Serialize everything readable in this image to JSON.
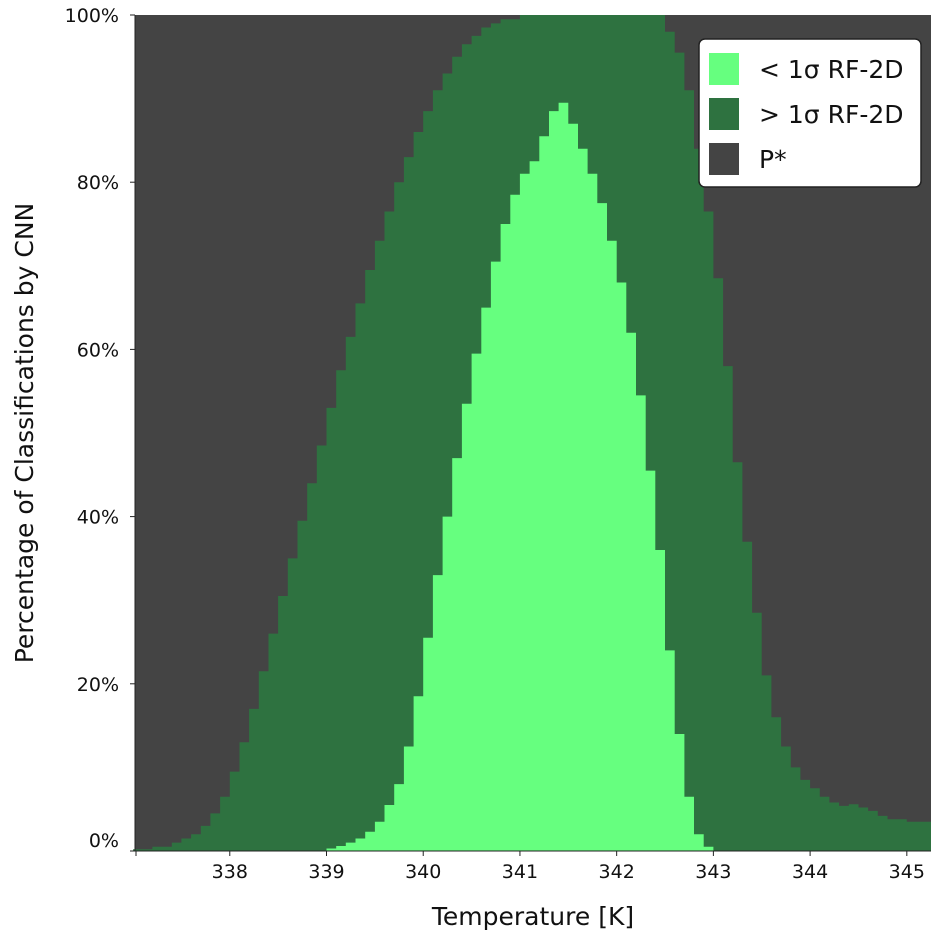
{
  "chart_data": {
    "type": "area",
    "subtype": "stacked-step",
    "xlabel": "Temperature [K]",
    "ylabel": "Percentage of Classifications by CNN",
    "xlim": [
      337.02,
      345.25
    ],
    "ylim": [
      0,
      100
    ],
    "x_ticks": [
      338,
      339,
      340,
      341,
      342,
      343,
      344,
      345
    ],
    "x_tick_labels": [
      "338",
      "339",
      "340",
      "341",
      "342",
      "343",
      "344",
      "345"
    ],
    "y_ticks": [
      0,
      20,
      40,
      60,
      80,
      100
    ],
    "y_tick_labels": [
      "0%",
      "20%",
      "40%",
      "60%",
      "80%",
      "100%"
    ],
    "grid": false,
    "legend_position": "top-right",
    "series": [
      {
        "name": "< 1σ RF-2D",
        "color": "#66ff7f",
        "points": [
          [
            337.0,
            0
          ],
          [
            338.0,
            0
          ],
          [
            338.8,
            0
          ],
          [
            339.0,
            0.3
          ],
          [
            339.1,
            0.6
          ],
          [
            339.2,
            1.0
          ],
          [
            339.3,
            1.5
          ],
          [
            339.4,
            2.3
          ],
          [
            339.5,
            3.5
          ],
          [
            339.6,
            5.5
          ],
          [
            339.7,
            8.0
          ],
          [
            339.8,
            12.5
          ],
          [
            339.9,
            18.5
          ],
          [
            340.0,
            25.5
          ],
          [
            340.1,
            33.0
          ],
          [
            340.2,
            40.0
          ],
          [
            340.3,
            47.0
          ],
          [
            340.4,
            53.5
          ],
          [
            340.5,
            59.5
          ],
          [
            340.6,
            65.0
          ],
          [
            340.7,
            70.5
          ],
          [
            340.8,
            75.0
          ],
          [
            340.9,
            78.5
          ],
          [
            341.0,
            81.0
          ],
          [
            341.1,
            82.5
          ],
          [
            341.2,
            85.5
          ],
          [
            341.3,
            88.5
          ],
          [
            341.4,
            89.5
          ],
          [
            341.5,
            87.0
          ],
          [
            341.6,
            84.0
          ],
          [
            341.7,
            81.0
          ],
          [
            341.8,
            77.5
          ],
          [
            341.9,
            73.0
          ],
          [
            342.0,
            68.0
          ],
          [
            342.1,
            62.0
          ],
          [
            342.2,
            54.5
          ],
          [
            342.3,
            45.5
          ],
          [
            342.4,
            36.0
          ],
          [
            342.5,
            24.0
          ],
          [
            342.6,
            14.0
          ],
          [
            342.7,
            6.5
          ],
          [
            342.8,
            2.0
          ],
          [
            342.9,
            0.5
          ],
          [
            343.0,
            0
          ],
          [
            345.25,
            0
          ]
        ]
      },
      {
        "name": "> 1σ RF-2D",
        "color": "#2e7240",
        "points": [
          [
            337.0,
            0.2
          ],
          [
            337.2,
            0.5
          ],
          [
            337.4,
            1.0
          ],
          [
            337.5,
            1.5
          ],
          [
            337.6,
            2.0
          ],
          [
            337.7,
            3.0
          ],
          [
            337.8,
            4.5
          ],
          [
            337.9,
            6.5
          ],
          [
            338.0,
            9.5
          ],
          [
            338.1,
            13.0
          ],
          [
            338.2,
            17.0
          ],
          [
            338.3,
            21.5
          ],
          [
            338.4,
            26.0
          ],
          [
            338.5,
            30.5
          ],
          [
            338.6,
            35.0
          ],
          [
            338.7,
            39.5
          ],
          [
            338.8,
            44.0
          ],
          [
            338.9,
            48.5
          ],
          [
            339.0,
            53.0
          ],
          [
            339.1,
            57.5
          ],
          [
            339.2,
            61.5
          ],
          [
            339.3,
            65.5
          ],
          [
            339.4,
            69.5
          ],
          [
            339.5,
            73.0
          ],
          [
            339.6,
            76.5
          ],
          [
            339.7,
            80.0
          ],
          [
            339.8,
            83.0
          ],
          [
            339.9,
            86.0
          ],
          [
            340.0,
            88.5
          ],
          [
            340.1,
            91.0
          ],
          [
            340.2,
            93.0
          ],
          [
            340.3,
            95.0
          ],
          [
            340.4,
            96.5
          ],
          [
            340.5,
            97.5
          ],
          [
            340.6,
            98.5
          ],
          [
            340.7,
            99.0
          ],
          [
            340.8,
            99.5
          ],
          [
            341.0,
            100
          ],
          [
            342.4,
            100
          ],
          [
            342.5,
            98.0
          ],
          [
            342.6,
            95.5
          ],
          [
            342.7,
            91.0
          ],
          [
            342.8,
            84.0
          ],
          [
            342.9,
            76.5
          ],
          [
            343.0,
            68.5
          ],
          [
            343.1,
            58.0
          ],
          [
            343.2,
            46.5
          ],
          [
            343.3,
            37.0
          ],
          [
            343.4,
            28.5
          ],
          [
            343.5,
            21.0
          ],
          [
            343.6,
            16.0
          ],
          [
            343.7,
            12.5
          ],
          [
            343.8,
            10.0
          ],
          [
            343.9,
            8.5
          ],
          [
            344.0,
            7.5
          ],
          [
            344.1,
            6.5
          ],
          [
            344.2,
            5.8
          ],
          [
            344.3,
            5.4
          ],
          [
            344.4,
            5.6
          ],
          [
            344.5,
            5.2
          ],
          [
            344.6,
            4.8
          ],
          [
            344.7,
            4.2
          ],
          [
            344.8,
            3.8
          ],
          [
            345.0,
            3.5
          ],
          [
            345.25,
            3.2
          ]
        ]
      },
      {
        "name": "P*",
        "color": "#444444",
        "fills_to": 100
      }
    ]
  }
}
